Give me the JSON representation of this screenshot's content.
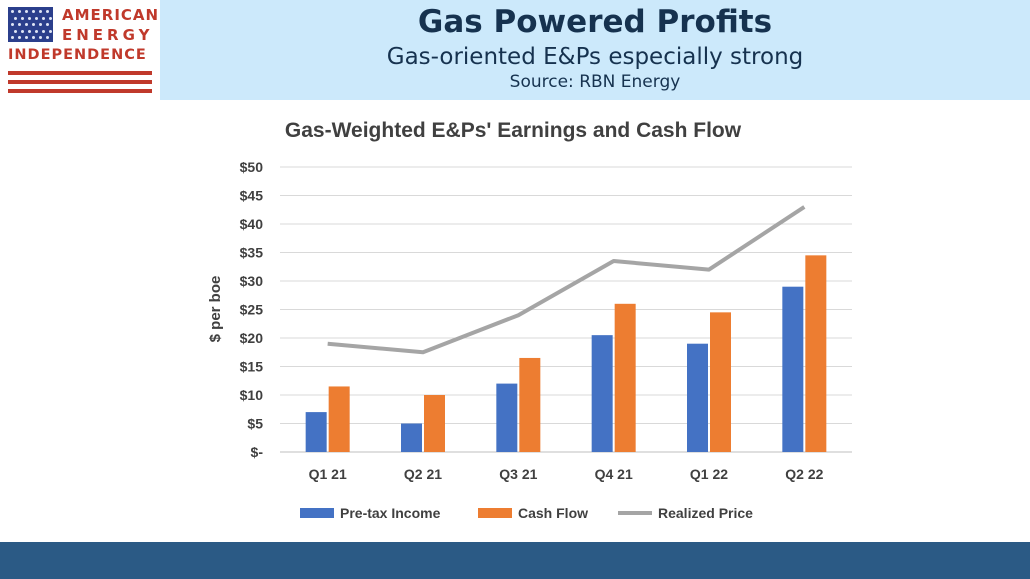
{
  "header": {
    "logo": {
      "line1": "AMERICAN",
      "line2": "ENERGY",
      "line3": "INDEPENDENCE"
    },
    "title": "Gas Powered Profits",
    "subtitle": "Gas-oriented E&Ps especially strong",
    "source": "Source: RBN Energy"
  },
  "colors": {
    "header_bg": "#cce9fb",
    "title_text": "#16324f",
    "logo_red": "#c0392b",
    "flag_blue": "#2b3f8c",
    "footer_bar": "#2b5a85",
    "pretax": "#4472c4",
    "cashflow": "#ed7d31",
    "realized": "#a5a5a5"
  },
  "chart_data": {
    "type": "bar",
    "title": "Gas-Weighted E&Ps' Earnings and Cash Flow",
    "ylabel": "$ per boe",
    "xlabel": "",
    "categories": [
      "Q1 21",
      "Q2 21",
      "Q3 21",
      "Q4 21",
      "Q1 22",
      "Q2 22"
    ],
    "ylim": [
      0,
      50
    ],
    "yticks": [
      0,
      5,
      10,
      15,
      20,
      25,
      30,
      35,
      40,
      45,
      50
    ],
    "ytick_labels": [
      "$-",
      "$5",
      "$10",
      "$15",
      "$20",
      "$25",
      "$30",
      "$35",
      "$40",
      "$45",
      "$50"
    ],
    "grid": true,
    "legend_position": "bottom",
    "series": [
      {
        "name": "Pre-tax Income",
        "type": "bar",
        "color": "#4472c4",
        "values": [
          7,
          5,
          12,
          20.5,
          19,
          29
        ]
      },
      {
        "name": "Cash Flow",
        "type": "bar",
        "color": "#ed7d31",
        "values": [
          11.5,
          10,
          16.5,
          26,
          24.5,
          34.5
        ]
      },
      {
        "name": "Realized Price",
        "type": "line",
        "color": "#a5a5a5",
        "values": [
          19,
          17.5,
          24,
          33.5,
          32,
          43
        ]
      }
    ]
  }
}
